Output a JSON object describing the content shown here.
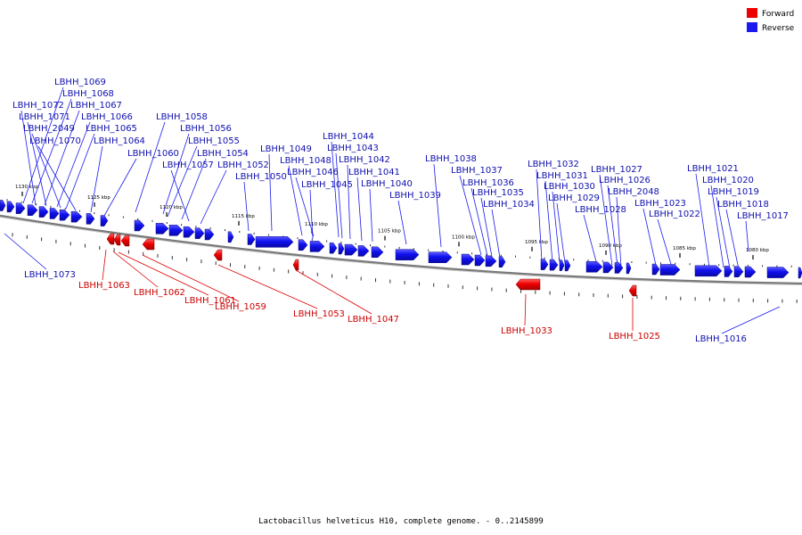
{
  "legend": {
    "items": [
      {
        "label": "Forward",
        "color": "#ee0000"
      },
      {
        "label": "Reverse",
        "color": "#1a1aee"
      }
    ]
  },
  "caption": "Lactobacillus helveticus H10, complete genome. - 0..2145899",
  "ticks": [
    "1130 kbp",
    "1125 kbp",
    "1120 kbp",
    "1115 kbp",
    "1110 kbp",
    "1105 kbp",
    "1100 kbp",
    "1095 kbp",
    "1090 kbp",
    "1085 kbp",
    "1080 kbp"
  ],
  "reverse_labels": [
    "LBHH_1069",
    "LBHH_1068",
    "LBHH_1072",
    "LBHH_1067",
    "LBHH_1071",
    "LBHH_1066",
    "LBHH_1058",
    "LBHH_2049",
    "LBHH_1065",
    "LBHH_1056",
    "LBHH_1070",
    "LBHH_1064",
    "LBHH_1055",
    "LBHH_1044",
    "LBHH_1060",
    "LBHH_1054",
    "LBHH_1043",
    "LBHH_1049",
    "LBHH_1057",
    "LBHH_1048",
    "LBHH_1042",
    "LBHH_1038",
    "LBHH_1052",
    "LBHH_1032",
    "LBHH_1046",
    "LBHH_1041",
    "LBHH_1037",
    "LBHH_1027",
    "LBHH_1021",
    "LBHH_1050",
    "LBHH_1031",
    "LBHH_1045",
    "LBHH_1040",
    "LBHH_1036",
    "LBHH_1026",
    "LBHH_1020",
    "LBHH_1030",
    "LBHH_1039",
    "LBHH_1035",
    "LBHH_2048",
    "LBHH_1019",
    "LBHH_1029",
    "LBHH_1034",
    "LBHH_1023",
    "LBHH_1018",
    "LBHH_1028",
    "LBHH_1022",
    "LBHH_1017",
    "LBHH_1073",
    "LBHH_1016"
  ],
  "forward_labels": [
    "LBHH_1063",
    "LBHH_1062",
    "LBHH_1061",
    "LBHH_1059",
    "LBHH_1053",
    "LBHH_1047",
    "LBHH_1033",
    "LBHH_1025"
  ]
}
